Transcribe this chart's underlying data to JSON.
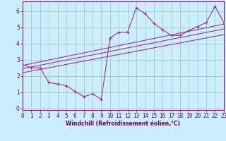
{
  "background_color": "#cceeff",
  "grid_color": "#aacccc",
  "line_color": "#993399",
  "xlabel": "Windchill (Refroidissement éolien,°C)",
  "xlim": [
    0,
    23
  ],
  "ylim": [
    -0.1,
    6.6
  ],
  "yticks": [
    0,
    1,
    2,
    3,
    4,
    5,
    6
  ],
  "xticks": [
    0,
    1,
    2,
    3,
    4,
    5,
    6,
    7,
    8,
    9,
    10,
    11,
    12,
    13,
    14,
    15,
    16,
    17,
    18,
    19,
    20,
    21,
    22,
    23
  ],
  "scatter_x": [
    0,
    1,
    2,
    3,
    4,
    5,
    6,
    7,
    8,
    9,
    10,
    11,
    12,
    13,
    14,
    15,
    16,
    17,
    18,
    19,
    20,
    21,
    22,
    23
  ],
  "scatter_y": [
    2.7,
    2.5,
    2.5,
    1.6,
    1.5,
    1.4,
    1.05,
    0.72,
    0.9,
    0.55,
    4.35,
    4.7,
    4.7,
    6.2,
    5.85,
    5.25,
    4.85,
    4.5,
    4.5,
    4.8,
    5.05,
    5.3,
    6.3,
    5.3
  ],
  "line1_x": [
    0,
    23
  ],
  "line1_y": [
    2.65,
    5.2
  ],
  "line2_x": [
    0,
    23
  ],
  "line2_y": [
    2.45,
    4.9
  ],
  "line3_x": [
    0,
    23
  ],
  "line3_y": [
    2.2,
    4.55
  ],
  "xlabel_fontsize": 5.5,
  "tick_fontsize": 5.5
}
